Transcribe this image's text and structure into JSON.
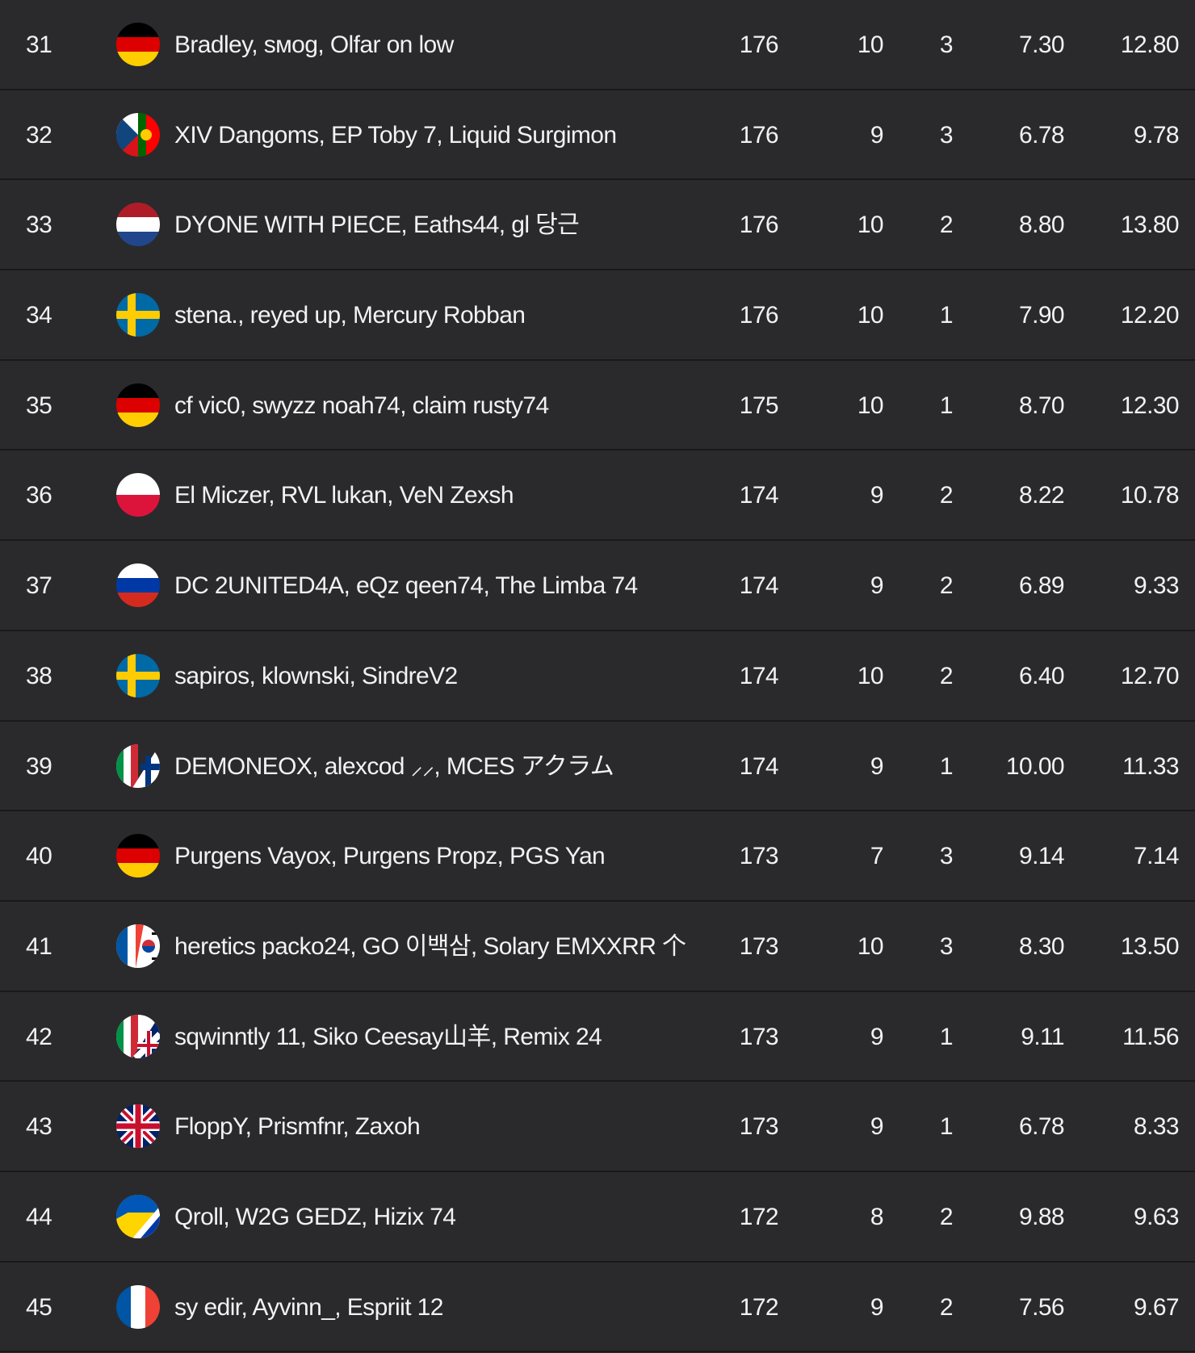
{
  "leaderboard": {
    "rows": [
      {
        "rank": "31",
        "flag": "germany-flag",
        "players": "Bradley, sмog, Olfar on low",
        "points": "176",
        "kills": "10",
        "wins": "3",
        "avg1": "7.30",
        "avg2": "12.80"
      },
      {
        "rank": "32",
        "flag": "czech-portugal-flag",
        "players": "XIV Dangoms, EP Toby 7, Liquid Surgimon",
        "points": "176",
        "kills": "9",
        "wins": "3",
        "avg1": "6.78",
        "avg2": "9.78"
      },
      {
        "rank": "33",
        "flag": "netherlands-flag",
        "players": "DYONE WITH PIECE, Eaths44, gl 당근",
        "points": "176",
        "kills": "10",
        "wins": "2",
        "avg1": "8.80",
        "avg2": "13.80"
      },
      {
        "rank": "34",
        "flag": "sweden-flag",
        "players": "stena., reyed up, Mercury Robban",
        "points": "176",
        "kills": "10",
        "wins": "1",
        "avg1": "7.90",
        "avg2": "12.20"
      },
      {
        "rank": "35",
        "flag": "germany-flag",
        "players": "cf vic0, swyzz noah74, claim rusty74",
        "points": "175",
        "kills": "10",
        "wins": "1",
        "avg1": "8.70",
        "avg2": "12.30"
      },
      {
        "rank": "36",
        "flag": "poland-flag",
        "players": "El Miczer, RVL lukan, VeN Zexsh",
        "points": "174",
        "kills": "9",
        "wins": "2",
        "avg1": "8.22",
        "avg2": "10.78"
      },
      {
        "rank": "37",
        "flag": "russia-flag",
        "players": "DC 2UNITED4A, eQz qeen74, The Limba 74",
        "points": "174",
        "kills": "9",
        "wins": "2",
        "avg1": "6.89",
        "avg2": "9.33"
      },
      {
        "rank": "38",
        "flag": "sweden-flag",
        "players": "sapiros, klownski, SindreV2",
        "points": "174",
        "kills": "10",
        "wins": "2",
        "avg1": "6.40",
        "avg2": "12.70"
      },
      {
        "rank": "39",
        "flag": "italy-finland-flag",
        "players": "DEMONEOX, alexcod ⸝⸝, MCES アクラム",
        "points": "174",
        "kills": "9",
        "wins": "1",
        "avg1": "10.00",
        "avg2": "11.33"
      },
      {
        "rank": "40",
        "flag": "germany-flag",
        "players": "Purgens Vayox, Purgens Propz, PGS Yan",
        "points": "173",
        "kills": "7",
        "wins": "3",
        "avg1": "9.14",
        "avg2": "7.14"
      },
      {
        "rank": "41",
        "flag": "france-korea-flag",
        "players": "heretics packo24, GO 이백삼, Solary EMXXRR 个",
        "points": "173",
        "kills": "10",
        "wins": "3",
        "avg1": "8.30",
        "avg2": "13.50"
      },
      {
        "rank": "42",
        "flag": "italy-uk-flag",
        "players": "sqwinntly 11, Siko Ceesay山羊, Remix 24",
        "points": "173",
        "kills": "9",
        "wins": "1",
        "avg1": "9.11",
        "avg2": "11.56"
      },
      {
        "rank": "43",
        "flag": "uk-flag",
        "players": "FloppY, Prismfnr, Zaxoh",
        "points": "173",
        "kills": "9",
        "wins": "1",
        "avg1": "6.78",
        "avg2": "8.33"
      },
      {
        "rank": "44",
        "flag": "ukraine-russia-flag",
        "players": "Qroll, W2G GEDZ, Hizix 74",
        "points": "172",
        "kills": "8",
        "wins": "2",
        "avg1": "9.88",
        "avg2": "9.63"
      },
      {
        "rank": "45",
        "flag": "france-flag",
        "players": "sy edir, Ayvinn_, Espriit 12",
        "points": "172",
        "kills": "9",
        "wins": "2",
        "avg1": "7.56",
        "avg2": "9.67"
      }
    ]
  },
  "colors": {
    "row_bg": "#2a2a2c",
    "divider": "#19191a",
    "text": "#f2f2f2"
  }
}
